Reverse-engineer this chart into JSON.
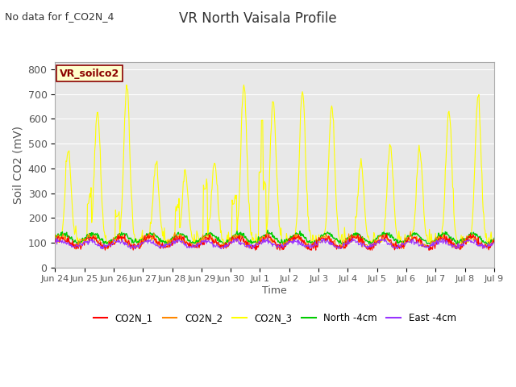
{
  "title": "VR North Vaisala Profile",
  "subtitle": "No data for f_CO2N_4",
  "ylabel": "Soil CO2 (mV)",
  "xlabel": "Time",
  "ylim": [
    0,
    830
  ],
  "yticks": [
    0,
    100,
    200,
    300,
    400,
    500,
    600,
    700,
    800
  ],
  "annotation_box": "VR_soilco2",
  "bg_color": "#e8e8e8",
  "series_colors": {
    "CO2N_1": "#ff0000",
    "CO2N_2": "#ff8800",
    "CO2N_3": "#ffff00",
    "North_4cm": "#00cc00",
    "East_4cm": "#9933ff"
  },
  "legend_labels": [
    "CO2N_1",
    "CO2N_2",
    "CO2N_3",
    "North -4cm",
    "East -4cm"
  ],
  "xtick_labels": [
    "Jun 24",
    "Jun 25",
    "Jun 26",
    "Jun 27",
    "Jun 28",
    "Jun 29",
    "Jun 30",
    "Jul 1",
    "Jul 2",
    "Jul 3",
    "Jul 4",
    "Jul 5",
    "Jul 6",
    "Jul 7",
    "Jul 8",
    "Jul 9"
  ],
  "n_days": 15
}
